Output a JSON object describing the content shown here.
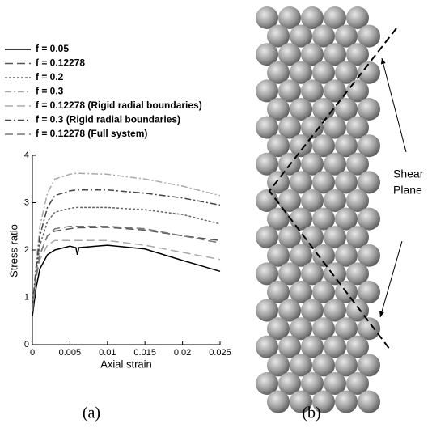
{
  "chart_data": {
    "type": "line",
    "xlabel": "Axial strain",
    "ylabel": "Stress ratio",
    "x": [
      0,
      0.0005,
      0.001,
      0.002,
      0.003,
      0.005,
      0.0058,
      0.006,
      0.0062,
      0.01,
      0.015,
      0.02,
      0.025
    ],
    "series": [
      {
        "name": "f = 0.05",
        "color": "#000000",
        "dash": "none",
        "values": [
          0.6,
          1.2,
          1.6,
          1.9,
          2.0,
          2.08,
          2.05,
          1.9,
          2.05,
          2.1,
          2.02,
          1.78,
          1.55
        ]
      },
      {
        "name": "f = 0.12278",
        "color": "#555555",
        "dash": "10 5",
        "values": [
          0.7,
          1.4,
          1.9,
          2.3,
          2.4,
          2.45,
          2.47,
          2.47,
          2.47,
          2.48,
          2.42,
          2.3,
          2.2
        ]
      },
      {
        "name": "f = 0.2",
        "color": "#666666",
        "dash": "3 2",
        "values": [
          0.7,
          1.5,
          2.1,
          2.6,
          2.8,
          2.88,
          2.9,
          2.9,
          2.9,
          2.9,
          2.85,
          2.75,
          2.55
        ]
      },
      {
        "name": "f = 0.3",
        "color": "#aaaaaa",
        "dash": "8 3 2 3",
        "values": [
          0.8,
          1.7,
          2.5,
          3.2,
          3.5,
          3.6,
          3.62,
          3.62,
          3.62,
          3.6,
          3.5,
          3.35,
          3.15
        ]
      },
      {
        "name": "f = 0.12278 (Rigid radial boundaries)",
        "color": "#aaaaaa",
        "dash": "10 5",
        "values": [
          0.7,
          1.4,
          1.8,
          2.1,
          2.2,
          2.2,
          2.2,
          2.2,
          2.2,
          2.2,
          2.1,
          1.95,
          1.8
        ]
      },
      {
        "name": "f = 0.3 (Rigid radial boundaries)",
        "color": "#444444",
        "dash": "8 3 2 3",
        "values": [
          0.8,
          1.6,
          2.3,
          2.9,
          3.15,
          3.25,
          3.27,
          3.27,
          3.27,
          3.27,
          3.2,
          3.1,
          2.95
        ]
      },
      {
        "name": "f = 0.12278 (Full system)",
        "color": "#777777",
        "dash": "10 5",
        "values": [
          0.7,
          1.4,
          1.9,
          2.3,
          2.45,
          2.5,
          2.5,
          2.5,
          2.5,
          2.5,
          2.45,
          2.3,
          2.15
        ]
      }
    ],
    "xlim": [
      0,
      0.025
    ],
    "xticks": [
      0,
      0.005,
      0.01,
      0.015,
      0.02,
      0.025
    ],
    "ylim": [
      0,
      4
    ],
    "yticks": [
      0,
      1,
      2,
      3,
      4
    ]
  },
  "panel_labels": [
    "(a)",
    "(b)"
  ],
  "diagram": {
    "annotation": [
      "Shear",
      "Plane"
    ]
  }
}
